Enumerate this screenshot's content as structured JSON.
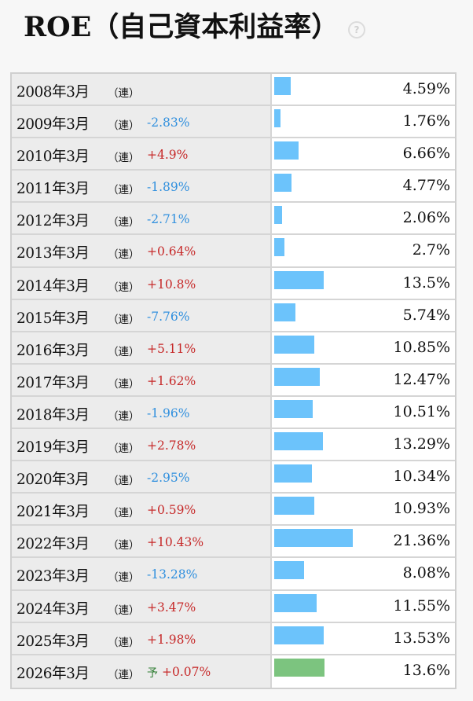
{
  "title": "ROE（自己資本利益率）",
  "help_icon": "question-circle-icon",
  "colors": {
    "bar_actual": "#6cc3fb",
    "bar_forecast": "#7cc47f",
    "change_up": "#c62828",
    "change_down": "#2f8fde",
    "forecast_mark": "#2e7d32"
  },
  "chart_data": {
    "type": "bar",
    "orientation": "horizontal",
    "title": "ROE（自己資本利益率）",
    "ylim": [
      0,
      21.36
    ],
    "rows": [
      {
        "period": "2008年3月",
        "basis": "（連）",
        "forecast": "",
        "change": "",
        "value": 4.59,
        "value_label": "4.59%"
      },
      {
        "period": "2009年3月",
        "basis": "（連）",
        "forecast": "",
        "change": "-2.83%",
        "value": 1.76,
        "value_label": "1.76%"
      },
      {
        "period": "2010年3月",
        "basis": "（連）",
        "forecast": "",
        "change": "+4.9%",
        "value": 6.66,
        "value_label": "6.66%"
      },
      {
        "period": "2011年3月",
        "basis": "（連）",
        "forecast": "",
        "change": "-1.89%",
        "value": 4.77,
        "value_label": "4.77%"
      },
      {
        "period": "2012年3月",
        "basis": "（連）",
        "forecast": "",
        "change": "-2.71%",
        "value": 2.06,
        "value_label": "2.06%"
      },
      {
        "period": "2013年3月",
        "basis": "（連）",
        "forecast": "",
        "change": "+0.64%",
        "value": 2.7,
        "value_label": "2.7%"
      },
      {
        "period": "2014年3月",
        "basis": "（連）",
        "forecast": "",
        "change": "+10.8%",
        "value": 13.5,
        "value_label": "13.5%"
      },
      {
        "period": "2015年3月",
        "basis": "（連）",
        "forecast": "",
        "change": "-7.76%",
        "value": 5.74,
        "value_label": "5.74%"
      },
      {
        "period": "2016年3月",
        "basis": "（連）",
        "forecast": "",
        "change": "+5.11%",
        "value": 10.85,
        "value_label": "10.85%"
      },
      {
        "period": "2017年3月",
        "basis": "（連）",
        "forecast": "",
        "change": "+1.62%",
        "value": 12.47,
        "value_label": "12.47%"
      },
      {
        "period": "2018年3月",
        "basis": "（連）",
        "forecast": "",
        "change": "-1.96%",
        "value": 10.51,
        "value_label": "10.51%"
      },
      {
        "period": "2019年3月",
        "basis": "（連）",
        "forecast": "",
        "change": "+2.78%",
        "value": 13.29,
        "value_label": "13.29%"
      },
      {
        "period": "2020年3月",
        "basis": "（連）",
        "forecast": "",
        "change": "-2.95%",
        "value": 10.34,
        "value_label": "10.34%"
      },
      {
        "period": "2021年3月",
        "basis": "（連）",
        "forecast": "",
        "change": "+0.59%",
        "value": 10.93,
        "value_label": "10.93%"
      },
      {
        "period": "2022年3月",
        "basis": "（連）",
        "forecast": "",
        "change": "+10.43%",
        "value": 21.36,
        "value_label": "21.36%"
      },
      {
        "period": "2023年3月",
        "basis": "（連）",
        "forecast": "",
        "change": "-13.28%",
        "value": 8.08,
        "value_label": "8.08%"
      },
      {
        "period": "2024年3月",
        "basis": "（連）",
        "forecast": "",
        "change": "+3.47%",
        "value": 11.55,
        "value_label": "11.55%"
      },
      {
        "period": "2025年3月",
        "basis": "（連）",
        "forecast": "",
        "change": "+1.98%",
        "value": 13.53,
        "value_label": "13.53%"
      },
      {
        "period": "2026年3月",
        "basis": "（連）",
        "forecast": "予",
        "change": "+0.07%",
        "value": 13.6,
        "value_label": "13.6%"
      }
    ]
  }
}
